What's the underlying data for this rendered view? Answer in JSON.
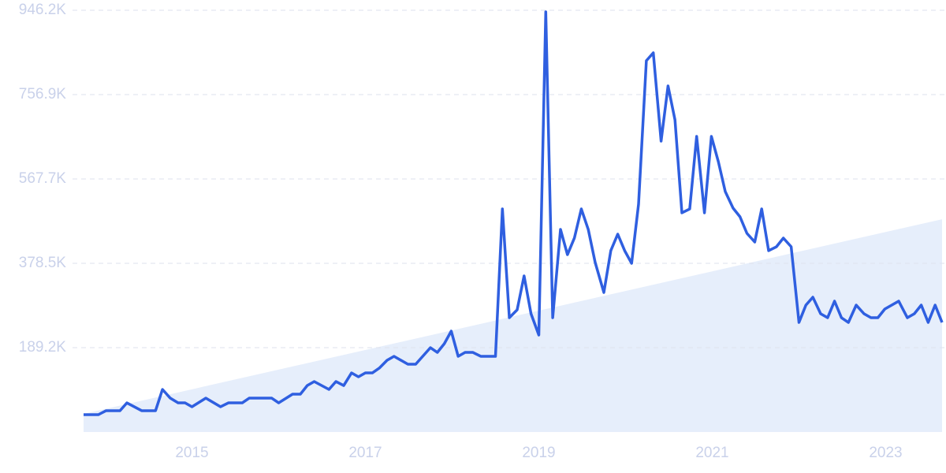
{
  "chart_data": {
    "type": "line",
    "x": [
      2013.75,
      2013.92,
      2014.01,
      2014.17,
      2014.25,
      2014.42,
      2014.58,
      2014.66,
      2014.75,
      2014.84,
      2014.92,
      2015.0,
      2015.16,
      2015.33,
      2015.42,
      2015.58,
      2015.66,
      2015.92,
      2016.0,
      2016.16,
      2016.25,
      2016.33,
      2016.41,
      2016.58,
      2016.66,
      2016.75,
      2016.84,
      2016.92,
      2017.0,
      2017.08,
      2017.16,
      2017.25,
      2017.33,
      2017.49,
      2017.58,
      2017.75,
      2017.83,
      2017.91,
      2017.99,
      2018.07,
      2018.15,
      2018.24,
      2018.33,
      2018.5,
      2018.58,
      2018.66,
      2018.75,
      2018.83,
      2018.91,
      2019.0,
      2019.08,
      2019.16,
      2019.25,
      2019.33,
      2019.41,
      2019.49,
      2019.57,
      2019.65,
      2019.75,
      2019.83,
      2019.91,
      2019.99,
      2020.07,
      2020.15,
      2020.24,
      2020.32,
      2020.41,
      2020.49,
      2020.57,
      2020.65,
      2020.74,
      2020.82,
      2020.91,
      2020.99,
      2021.07,
      2021.15,
      2021.24,
      2021.32,
      2021.4,
      2021.49,
      2021.57,
      2021.65,
      2021.74,
      2021.82,
      2021.91,
      2022.0,
      2022.08,
      2022.16,
      2022.25,
      2022.33,
      2022.41,
      2022.49,
      2022.57,
      2022.66,
      2022.75,
      2022.83,
      2022.91,
      2022.99,
      2023.07,
      2023.15,
      2023.25,
      2023.33,
      2023.41,
      2023.49,
      2023.57,
      2023.65
    ],
    "series": [
      {
        "color": "#2f5fe0",
        "values": [
          38900,
          38900,
          47800,
          47800,
          65400,
          47800,
          47800,
          95500,
          76000,
          65400,
          65400,
          56600,
          76000,
          56600,
          65400,
          65400,
          76000,
          76000,
          65400,
          84900,
          84900,
          104300,
          113200,
          95500,
          113200,
          104300,
          132600,
          123800,
          132600,
          132600,
          143300,
          160900,
          169800,
          152100,
          152100,
          189200,
          178600,
          198100,
          226400,
          169800,
          178600,
          178600,
          169800,
          169800,
          500500,
          256400,
          274100,
          350200,
          265300,
          217500,
          942700,
          256400,
          454500,
          397900,
          435100,
          500500,
          454500,
          380200,
          313000,
          406800,
          443900,
          406800,
          378500,
          511100,
          833000,
          850700,
          652600,
          776400,
          700400,
          491700,
          500500,
          663200,
          491700,
          663200,
          606600,
          539400,
          502300,
          482800,
          445700,
          426200,
          500500,
          406800,
          415600,
          435100,
          415600,
          245800,
          284700,
          302400,
          265300,
          256400,
          293600,
          256400,
          245800,
          284700,
          265300,
          256400,
          256400,
          275900,
          284700,
          293600,
          256400,
          265300,
          284700,
          245800,
          284700,
          245800
        ]
      }
    ],
    "trend": {
      "x": [
        2013.75,
        2023.65
      ],
      "values": [
        40700,
        477400
      ],
      "color": "#e6eefb"
    },
    "xlim": [
      2013.75,
      2023.65
    ],
    "xticks": [
      2015,
      2017,
      2019,
      2021,
      2023
    ],
    "ylim": [
      0,
      946200
    ],
    "yticks": [
      {
        "value": 189200,
        "label": "189.2K"
      },
      {
        "value": 378500,
        "label": "378.5K"
      },
      {
        "value": 567700,
        "label": "567.7K"
      },
      {
        "value": 756900,
        "label": "756.9K"
      },
      {
        "value": 946200,
        "label": "946.2K"
      }
    ],
    "grid": true
  }
}
